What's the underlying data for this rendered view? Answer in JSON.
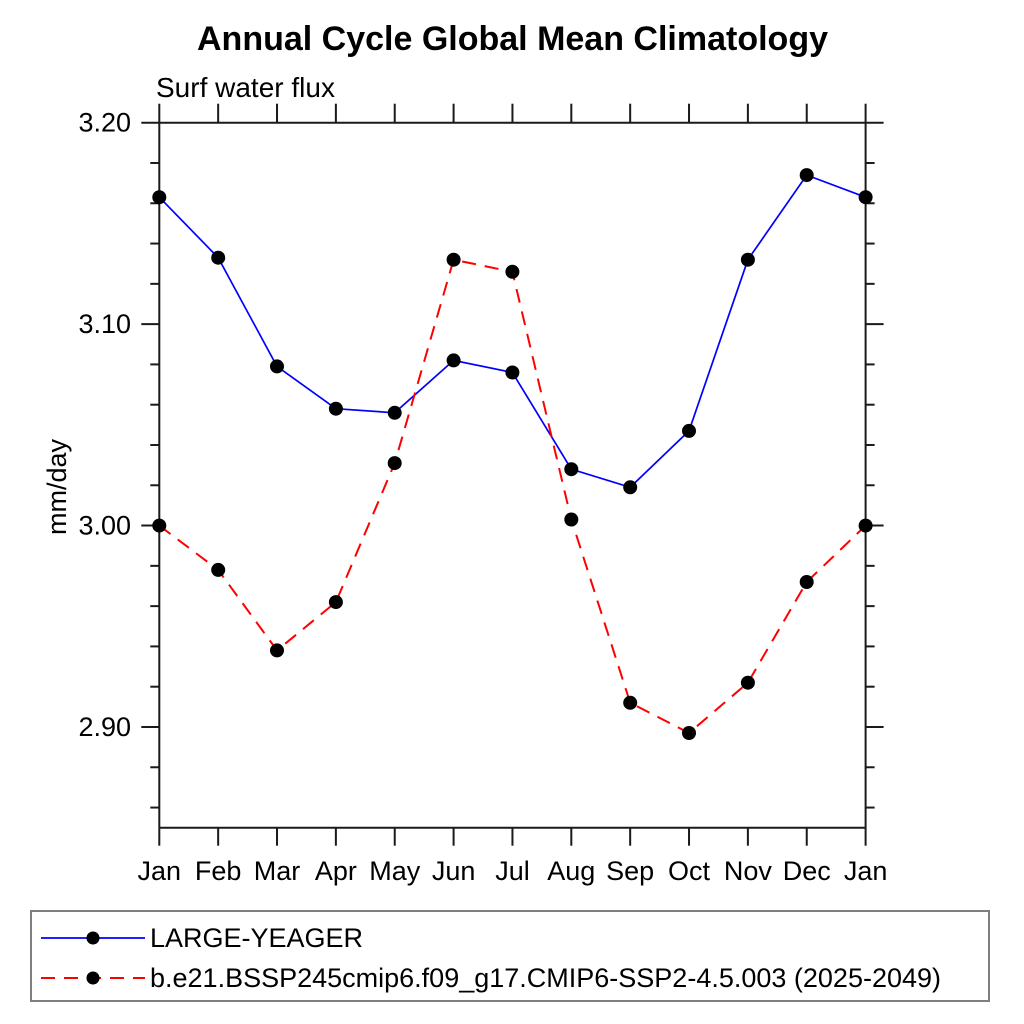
{
  "title": "Annual Cycle Global Mean Climatology",
  "subtitle": "Surf water flux",
  "ylabel": "mm/day",
  "chart_data": {
    "type": "line",
    "categories": [
      "Jan",
      "Feb",
      "Mar",
      "Apr",
      "May",
      "Jun",
      "Jul",
      "Aug",
      "Sep",
      "Oct",
      "Nov",
      "Dec",
      "Jan"
    ],
    "series": [
      {
        "name": "LARGE-YEAGER",
        "color": "#0000ff",
        "line_style": "solid",
        "marker": "filled-circle",
        "values": [
          3.163,
          3.133,
          3.079,
          3.058,
          3.056,
          3.082,
          3.076,
          3.028,
          3.019,
          3.047,
          3.132,
          3.174,
          3.163
        ]
      },
      {
        "name": "b.e21.BSSP245cmip6.f09_g17.CMIP6-SSP2-4.5.003 (2025-2049)",
        "color": "#ff0000",
        "line_style": "dashed",
        "marker": "filled-circle",
        "values": [
          3.0,
          2.978,
          2.938,
          2.962,
          3.031,
          3.132,
          3.126,
          3.003,
          2.912,
          2.897,
          2.922,
          2.972,
          3.0
        ]
      }
    ],
    "marker_color": "#000000",
    "axis_color": "#1a1a1a",
    "ylim": [
      2.85,
      3.2
    ],
    "yticks": [
      2.9,
      3.0,
      3.1,
      3.2
    ],
    "ytick_labels": [
      "2.90",
      "3.00",
      "3.10",
      "3.20"
    ],
    "minor_tick_step": 0.02,
    "grid": false,
    "legend_position": "bottom"
  }
}
